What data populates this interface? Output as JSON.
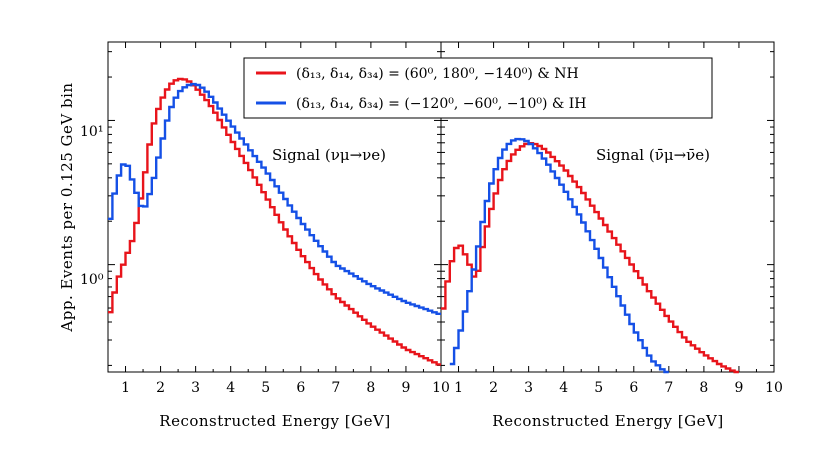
{
  "chart_data": [
    {
      "type": "line",
      "panel": "left",
      "title": "",
      "annotation": "Signal (ν_μ→ν_e)",
      "xlabel": "Reconstructed Energy [GeV]",
      "ylabel": "App. Events per 0.125 GeV bin",
      "xlim": [
        0.5,
        10
      ],
      "ylim": [
        0.18,
        35
      ],
      "yscale": "log",
      "xticks": [
        1,
        2,
        3,
        4,
        5,
        6,
        7,
        8,
        9,
        10
      ],
      "yticks": [
        {
          "value": 1,
          "label": "10⁰"
        },
        {
          "value": 10,
          "label": "10¹"
        }
      ],
      "series": [
        {
          "name": "(δ13, δ14, δ34) = (60⁰, 180⁰, −140⁰) & NH",
          "color": "#e8141b",
          "x": [
            0.5,
            0.75,
            1.0,
            1.25,
            1.5,
            1.75,
            2.0,
            2.25,
            2.5,
            2.75,
            3.0,
            3.25,
            3.5,
            3.75,
            4.0,
            4.5,
            5.0,
            5.5,
            6.0,
            6.5,
            7.0,
            8.0,
            9.0,
            10.0
          ],
          "y": [
            0.4,
            0.75,
            1.1,
            1.6,
            3.5,
            8.5,
            13.5,
            17.5,
            19.5,
            19.2,
            17.0,
            14.5,
            12.0,
            9.5,
            7.5,
            4.8,
            3.0,
            1.85,
            1.2,
            0.82,
            0.6,
            0.38,
            0.26,
            0.2
          ]
        },
        {
          "name": "(δ13, δ14, δ34) = (−120⁰, −60⁰, −10⁰) & IH",
          "color": "#1550e6",
          "x": [
            0.5,
            0.75,
            1.0,
            1.25,
            1.5,
            1.75,
            2.0,
            2.25,
            2.5,
            2.75,
            3.0,
            3.25,
            3.5,
            3.75,
            4.0,
            4.5,
            5.0,
            5.5,
            6.0,
            6.5,
            7.0,
            8.0,
            9.0,
            10.0
          ],
          "y": [
            1.7,
            3.8,
            5.4,
            3.5,
            2.3,
            3.4,
            6.5,
            11.5,
            15.5,
            17.5,
            18.0,
            16.5,
            14.0,
            11.5,
            9.5,
            6.5,
            4.5,
            3.0,
            2.0,
            1.4,
            1.0,
            0.72,
            0.55,
            0.45
          ]
        }
      ]
    },
    {
      "type": "line",
      "panel": "right",
      "title": "",
      "annotation": "Signal (ν̄_μ→ν̄_e)",
      "xlabel": "Reconstructed Energy [GeV]",
      "ylabel": "",
      "xlim": [
        0.5,
        10
      ],
      "ylim": [
        0.18,
        35
      ],
      "yscale": "log",
      "xticks": [
        1,
        2,
        3,
        4,
        5,
        6,
        7,
        8,
        9,
        10
      ],
      "series": [
        {
          "name": "(δ13, δ14, δ34) = (60⁰, 180⁰, −140⁰) & NH",
          "color": "#e8141b",
          "x": [
            0.5,
            0.75,
            1.0,
            1.25,
            1.5,
            1.75,
            2.0,
            2.25,
            2.5,
            2.75,
            3.0,
            3.25,
            3.5,
            4.0,
            4.5,
            5.0,
            5.5,
            6.0,
            6.5,
            7.0,
            7.5,
            8.0,
            8.5,
            8.9
          ],
          "y": [
            0.4,
            0.95,
            1.45,
            1.1,
            0.75,
            1.6,
            2.8,
            4.3,
            5.6,
            6.5,
            7.0,
            6.8,
            6.2,
            4.7,
            3.3,
            2.2,
            1.45,
            0.95,
            0.62,
            0.42,
            0.3,
            0.24,
            0.2,
            0.18
          ]
        },
        {
          "name": "(δ13, δ14, δ34) = (−120⁰, −60⁰, −10⁰) & IH",
          "color": "#1550e6",
          "x": [
            0.75,
            1.0,
            1.25,
            1.5,
            1.75,
            2.0,
            2.25,
            2.5,
            2.75,
            3.0,
            3.25,
            3.5,
            4.0,
            4.5,
            5.0,
            5.5,
            6.0,
            6.5,
            6.9
          ],
          "y": [
            0.18,
            0.3,
            0.55,
            1.1,
            2.4,
            4.2,
            6.0,
            7.2,
            7.5,
            7.1,
            6.2,
            5.2,
            3.4,
            2.1,
            1.2,
            0.65,
            0.36,
            0.22,
            0.18
          ]
        }
      ]
    }
  ],
  "legend": {
    "entries": [
      {
        "color": "#e8141b",
        "label": "(δ₁₃,  δ₁₄,  δ₃₄)  =  (60⁰,  180⁰,  −140⁰)  & NH"
      },
      {
        "color": "#1550e6",
        "label": "(δ₁₃,  δ₁₄,  δ₃₄)  =  (−120⁰,  −60⁰,  −10⁰)  & IH"
      }
    ]
  },
  "labels": {
    "ylabel": "App. Events per 0.125 GeV bin",
    "xlabel_left": "Reconstructed  Energy  [GeV]",
    "xlabel_right": "Reconstructed  Energy  [GeV]",
    "signal_left": "Signal (νμ→νe)",
    "signal_right": "Signal (ν̄μ→ν̄e)",
    "ytick_10_0": "10⁰",
    "ytick_10_1": "10¹"
  }
}
